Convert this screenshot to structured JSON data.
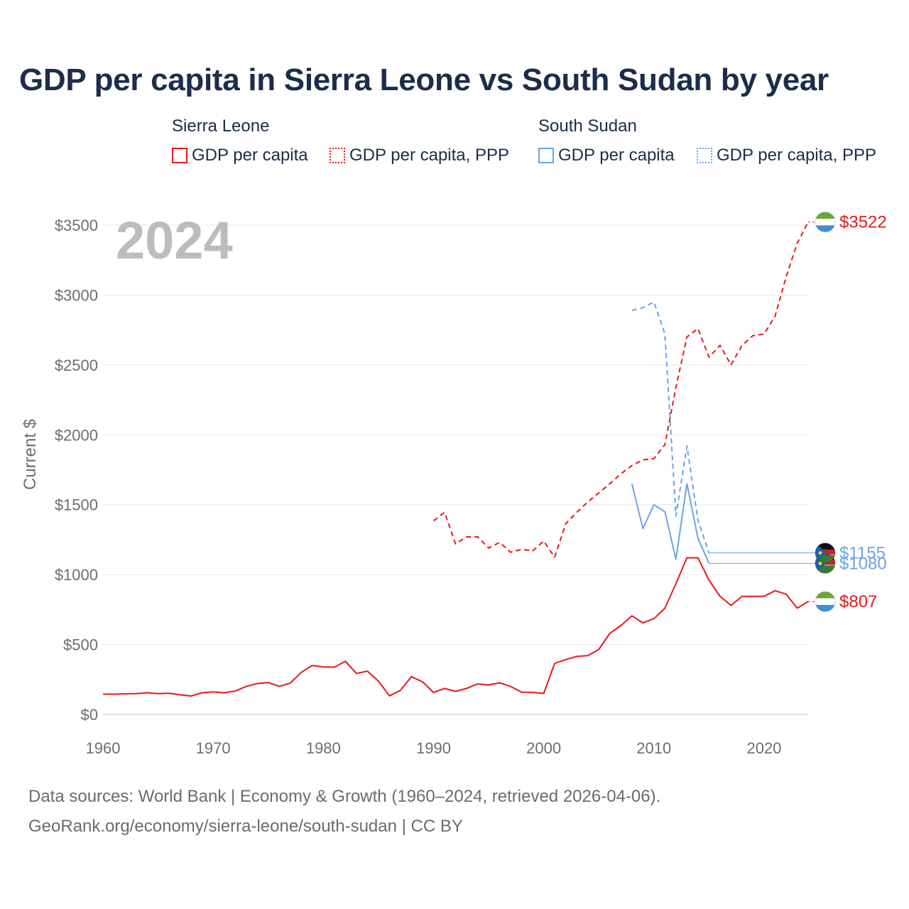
{
  "title": "GDP per capita in Sierra Leone vs South Sudan by year",
  "current_year": "2024",
  "legend": {
    "groups": [
      {
        "country": "Sierra Leone",
        "items": [
          "GDP per capita",
          "GDP per capita, PPP"
        ]
      },
      {
        "country": "South Sudan",
        "items": [
          "GDP per capita",
          "GDP per capita, PPP"
        ]
      }
    ]
  },
  "colors": {
    "sierra_leone": "#e8191c",
    "south_sudan": "#6aa5e2",
    "title": "#1b2d4a",
    "grid": "#e6e6e6"
  },
  "footer": {
    "line1": "Data sources: World Bank | Economy & Growth (1960–2024, retrieved 2026-04-06).",
    "line2": "GeoRank.org/economy/sierra-leone/south-sudan | CC BY"
  },
  "chart_data": {
    "type": "line",
    "ylabel": "Current $",
    "xlabel": "",
    "xlim": [
      1960,
      2024
    ],
    "ylim": [
      0,
      3500
    ],
    "x_ticks": [
      1960,
      1970,
      1980,
      1990,
      2000,
      2010,
      2020
    ],
    "y_ticks": [
      0,
      500,
      1000,
      1500,
      2000,
      2500,
      3000,
      3500
    ],
    "y_tick_labels": [
      "$0",
      "$500",
      "$1000",
      "$1500",
      "$2000",
      "$2500",
      "$3000",
      "$3500"
    ],
    "grid": true,
    "series": [
      {
        "name": "Sierra Leone GDP per capita",
        "country": "Sierra Leone",
        "style": "solid",
        "color": "#e8191c",
        "end_label": "$807",
        "points": [
          [
            1960,
            145
          ],
          [
            1961,
            145
          ],
          [
            1962,
            148
          ],
          [
            1963,
            149
          ],
          [
            1964,
            155
          ],
          [
            1965,
            149
          ],
          [
            1966,
            151
          ],
          [
            1967,
            140
          ],
          [
            1968,
            132
          ],
          [
            1969,
            155
          ],
          [
            1970,
            161
          ],
          [
            1971,
            155
          ],
          [
            1972,
            167
          ],
          [
            1973,
            200
          ],
          [
            1974,
            221
          ],
          [
            1975,
            228
          ],
          [
            1976,
            201
          ],
          [
            1977,
            224
          ],
          [
            1978,
            301
          ],
          [
            1979,
            350
          ],
          [
            1980,
            340
          ],
          [
            1981,
            338
          ],
          [
            1982,
            380
          ],
          [
            1983,
            293
          ],
          [
            1984,
            310
          ],
          [
            1985,
            238
          ],
          [
            1986,
            133
          ],
          [
            1987,
            172
          ],
          [
            1988,
            270
          ],
          [
            1989,
            233
          ],
          [
            1990,
            157
          ],
          [
            1991,
            186
          ],
          [
            1992,
            165
          ],
          [
            1993,
            186
          ],
          [
            1994,
            218
          ],
          [
            1995,
            211
          ],
          [
            1996,
            226
          ],
          [
            1997,
            200
          ],
          [
            1998,
            159
          ],
          [
            1999,
            158
          ],
          [
            2000,
            150
          ],
          [
            2001,
            365
          ],
          [
            2002,
            392
          ],
          [
            2003,
            415
          ],
          [
            2004,
            420
          ],
          [
            2005,
            465
          ],
          [
            2006,
            580
          ],
          [
            2007,
            635
          ],
          [
            2008,
            705
          ],
          [
            2009,
            655
          ],
          [
            2010,
            685
          ],
          [
            2011,
            760
          ],
          [
            2012,
            935
          ],
          [
            2013,
            1120
          ],
          [
            2014,
            1120
          ],
          [
            2015,
            960
          ],
          [
            2016,
            845
          ],
          [
            2017,
            780
          ],
          [
            2018,
            845
          ],
          [
            2019,
            845
          ],
          [
            2020,
            845
          ],
          [
            2021,
            885
          ],
          [
            2022,
            860
          ],
          [
            2023,
            760
          ],
          [
            2024,
            807
          ]
        ]
      },
      {
        "name": "Sierra Leone GDP per capita, PPP",
        "country": "Sierra Leone",
        "style": "dashed",
        "color": "#e8191c",
        "end_label": "$3522",
        "points": [
          [
            1990,
            1385
          ],
          [
            1991,
            1445
          ],
          [
            1992,
            1220
          ],
          [
            1993,
            1270
          ],
          [
            1994,
            1270
          ],
          [
            1995,
            1190
          ],
          [
            1996,
            1230
          ],
          [
            1997,
            1160
          ],
          [
            1998,
            1180
          ],
          [
            1999,
            1170
          ],
          [
            2000,
            1240
          ],
          [
            2001,
            1125
          ],
          [
            2002,
            1365
          ],
          [
            2003,
            1445
          ],
          [
            2004,
            1520
          ],
          [
            2005,
            1585
          ],
          [
            2006,
            1650
          ],
          [
            2007,
            1720
          ],
          [
            2008,
            1780
          ],
          [
            2009,
            1820
          ],
          [
            2010,
            1830
          ],
          [
            2011,
            1930
          ],
          [
            2012,
            2340
          ],
          [
            2013,
            2700
          ],
          [
            2014,
            2760
          ],
          [
            2015,
            2555
          ],
          [
            2016,
            2640
          ],
          [
            2017,
            2500
          ],
          [
            2018,
            2640
          ],
          [
            2019,
            2710
          ],
          [
            2020,
            2720
          ],
          [
            2021,
            2850
          ],
          [
            2022,
            3130
          ],
          [
            2023,
            3370
          ],
          [
            2024,
            3522
          ]
        ]
      },
      {
        "name": "South Sudan GDP per capita",
        "country": "South Sudan",
        "style": "solid",
        "color": "#6aa5e2",
        "end_label": "$1080",
        "points": [
          [
            2008,
            1650
          ],
          [
            2009,
            1330
          ],
          [
            2010,
            1500
          ],
          [
            2011,
            1450
          ],
          [
            2012,
            1110
          ],
          [
            2013,
            1650
          ],
          [
            2014,
            1260
          ],
          [
            2015,
            1080
          ]
        ]
      },
      {
        "name": "South Sudan GDP per capita, PPP",
        "country": "South Sudan",
        "style": "dashed",
        "color": "#6aa5e2",
        "end_label": "$1155",
        "points": [
          [
            2008,
            2890
          ],
          [
            2009,
            2910
          ],
          [
            2010,
            2950
          ],
          [
            2011,
            2720
          ],
          [
            2012,
            1420
          ],
          [
            2013,
            1920
          ],
          [
            2014,
            1390
          ],
          [
            2015,
            1155
          ]
        ]
      }
    ]
  }
}
